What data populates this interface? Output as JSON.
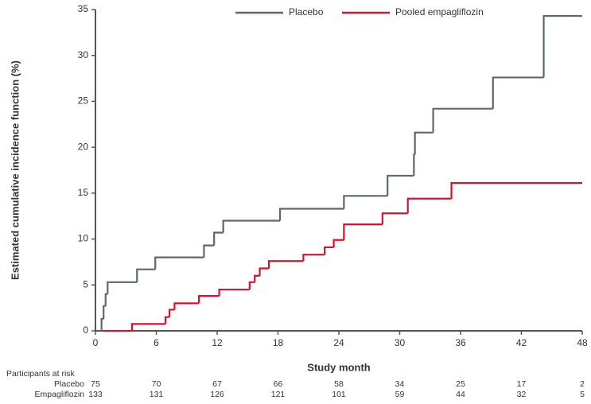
{
  "chart_data": {
    "type": "step",
    "y_label": "Estimated cumulative incidence function (%)",
    "x_label": "Study month",
    "xlim": [
      0,
      48
    ],
    "xticks": [
      0,
      6,
      12,
      18,
      24,
      30,
      36,
      42,
      48
    ],
    "ylim": [
      0,
      35
    ],
    "yticks": [
      0,
      5,
      10,
      15,
      20,
      25,
      30,
      35
    ],
    "grid": false,
    "legend": "top-right",
    "series": [
      {
        "name": "Placebo",
        "color": "#5c6770",
        "x": [
          0.47,
          0.6,
          0.8,
          1.0,
          1.2,
          4.1,
          5.9,
          10.7,
          11.7,
          12.6,
          18.2,
          24.5,
          28.8,
          31.4,
          31.5,
          33.3,
          39.2,
          44.2
        ],
        "values": [
          0,
          1.3,
          2.7,
          4.0,
          5.3,
          6.7,
          8.0,
          9.3,
          10.7,
          12.0,
          13.3,
          14.7,
          16.9,
          19.2,
          21.6,
          24.2,
          27.6,
          34.3
        ]
      },
      {
        "name": "Pooled empagliflozin",
        "color": "#d5132e",
        "x": [
          0.75,
          3.6,
          6.9,
          7.3,
          7.8,
          10.2,
          12.2,
          15.2,
          15.7,
          16.2,
          17.1,
          20.5,
          22.6,
          23.5,
          24.5,
          28.3,
          30.8,
          35.1
        ],
        "values": [
          0,
          0.75,
          1.5,
          2.3,
          3.0,
          3.8,
          4.5,
          5.3,
          6.0,
          6.8,
          7.6,
          8.3,
          9.1,
          9.9,
          11.6,
          12.8,
          14.4,
          16.1
        ]
      }
    ],
    "risk_table": {
      "title": "Participants at risk",
      "rows": [
        {
          "name": "Placebo",
          "values": [
            75,
            70,
            67,
            66,
            58,
            34,
            25,
            17,
            2
          ]
        },
        {
          "name": "Empagliflozin",
          "values": [
            133,
            131,
            126,
            121,
            101,
            59,
            44,
            32,
            5
          ]
        }
      ]
    }
  }
}
